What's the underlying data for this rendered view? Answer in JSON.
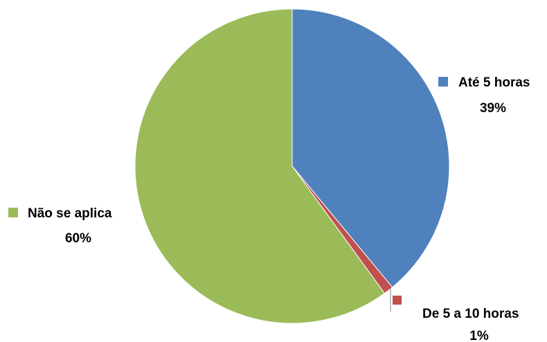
{
  "chart_data": {
    "type": "pie",
    "title": "",
    "start_angle_deg": 0,
    "direction": "clockwise",
    "legend": "none",
    "slices": [
      {
        "label": "Até 5 horas",
        "value": 39,
        "value_label": "39%",
        "color": "#4f81bd"
      },
      {
        "label": "De 5 a 10 horas",
        "value": 1,
        "value_label": "1%",
        "color": "#c0504d"
      },
      {
        "label": "Não se aplica",
        "value": 60,
        "value_label": "60%",
        "color": "#9bbb59"
      }
    ]
  }
}
